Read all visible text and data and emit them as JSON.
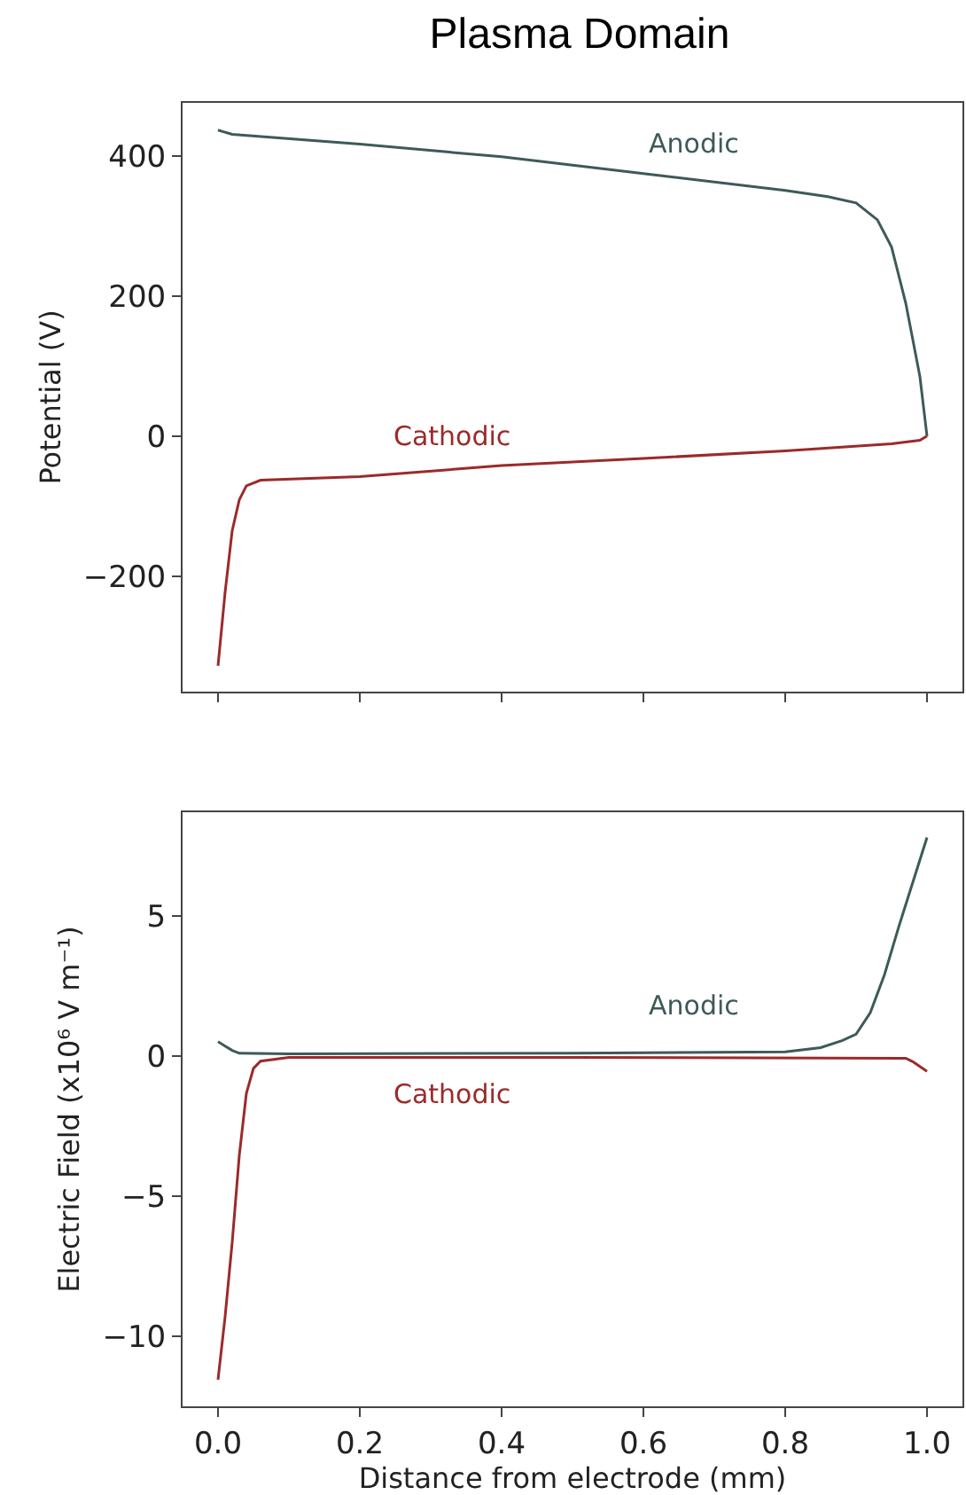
{
  "chart_data": [
    {
      "type": "line",
      "title": "Plasma Domain",
      "ylabel": "Potential (V)",
      "xlim": [
        -0.05,
        1.05
      ],
      "ylim": [
        -365,
        476
      ],
      "yticks": [
        -200,
        0,
        200,
        400
      ],
      "tick_labels": "y",
      "grid": false,
      "legend": false,
      "series": [
        {
          "name": "Anodic",
          "color": "#3d5a58",
          "x": [
            0,
            0.02,
            0.2,
            0.4,
            0.6,
            0.8,
            0.86,
            0.9,
            0.93,
            0.95,
            0.97,
            0.99,
            1.0
          ],
          "values": [
            437,
            431,
            417,
            399,
            375,
            351,
            342,
            333,
            309,
            270,
            190,
            85,
            0
          ]
        },
        {
          "name": "Cathodic",
          "color": "#9b2a2a",
          "x": [
            0,
            0.01,
            0.02,
            0.03,
            0.04,
            0.06,
            0.2,
            0.4,
            0.6,
            0.8,
            0.95,
            0.99,
            1.0
          ],
          "values": [
            -328,
            -223,
            -135,
            -91,
            -71,
            -63,
            -58,
            -42,
            -32,
            -21,
            -11,
            -6,
            0
          ]
        }
      ]
    },
    {
      "type": "line",
      "xlabel": "Distance from electrode (mm)",
      "ylabel": "Electric Field (x10⁶ V m⁻¹)",
      "xlim": [
        -0.05,
        1.05
      ],
      "xticks": [
        {
          "value": 0,
          "label": "0.0"
        },
        0.2,
        0.4,
        0.6,
        0.8,
        {
          "value": 1,
          "label": "1.0"
        }
      ],
      "ylim": [
        -12.5,
        8.7
      ],
      "yticks": [
        -10,
        -5,
        0,
        5
      ],
      "grid": false,
      "legend": false,
      "series": [
        {
          "name": "Anodic",
          "color": "#3d5a58",
          "x": [
            0,
            0.02,
            0.03,
            0.1,
            0.5,
            0.8,
            0.85,
            0.88,
            0.9,
            0.92,
            0.94,
            0.96,
            0.98,
            1.0
          ],
          "values": [
            0.51,
            0.2,
            0.1,
            0.08,
            0.1,
            0.15,
            0.3,
            0.55,
            0.78,
            1.55,
            2.9,
            4.6,
            6.2,
            7.8
          ]
        },
        {
          "name": "Cathodic",
          "color": "#9b2a2a",
          "x": [
            0,
            0.01,
            0.02,
            0.03,
            0.04,
            0.05,
            0.06,
            0.1,
            0.5,
            0.97,
            0.98,
            1.0
          ],
          "values": [
            -11.55,
            -9.3,
            -6.65,
            -3.55,
            -1.33,
            -0.44,
            -0.18,
            -0.05,
            -0.05,
            -0.08,
            -0.2,
            -0.55
          ]
        }
      ]
    }
  ]
}
